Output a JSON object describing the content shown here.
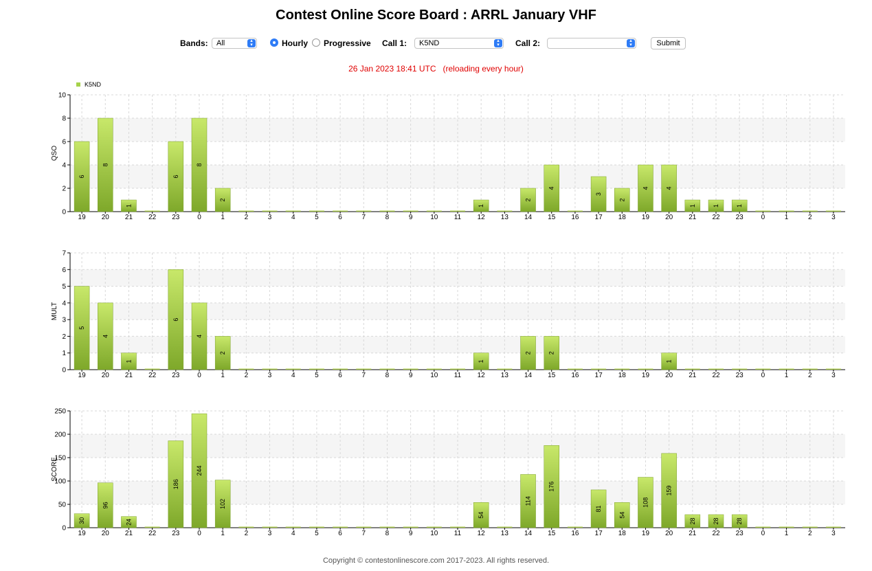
{
  "title": "Contest Online Score Board : ARRL January VHF",
  "controls": {
    "bands_label": "Bands:",
    "bands_value": "All",
    "hourly_label": "Hourly",
    "progressive_label": "Progressive",
    "mode_selected": "Hourly",
    "call1_label": "Call 1:",
    "call1_value": "K5ND",
    "call2_label": "Call 2:",
    "call2_value": "",
    "submit_label": "Submit"
  },
  "status": {
    "timestamp": "26 Jan 2023 18:41 UTC",
    "reload_note": "(reloading every hour)"
  },
  "colors": {
    "bar_top": "#c8e86a",
    "bar_bottom": "#7ea82a",
    "legend": "#a6d24a",
    "status": "#e00000"
  },
  "chart_data": [
    {
      "type": "bar",
      "legend": [
        "K5ND"
      ],
      "legend_position": "top-left",
      "ylabel": "QSO",
      "ylim": [
        0,
        10
      ],
      "yticks": [
        0,
        2,
        4,
        6,
        8,
        10
      ],
      "grid": true,
      "categories": [
        "19",
        "20",
        "21",
        "22",
        "23",
        "0",
        "1",
        "2",
        "3",
        "4",
        "5",
        "6",
        "7",
        "8",
        "9",
        "10",
        "11",
        "12",
        "13",
        "14",
        "15",
        "16",
        "17",
        "18",
        "19",
        "20",
        "21",
        "22",
        "23",
        "0",
        "1",
        "2",
        "3"
      ],
      "series": [
        {
          "name": "K5ND",
          "values": [
            6,
            8,
            1,
            0,
            6,
            8,
            2,
            0,
            0,
            0,
            0,
            0,
            0,
            0,
            0,
            0,
            0,
            1,
            0,
            2,
            4,
            0,
            3,
            2,
            4,
            4,
            1,
            1,
            1,
            0,
            0,
            0,
            0
          ]
        }
      ]
    },
    {
      "type": "bar",
      "legend": [],
      "ylabel": "MULT",
      "ylim": [
        0,
        7
      ],
      "yticks": [
        0,
        1,
        2,
        3,
        4,
        5,
        6,
        7
      ],
      "grid": true,
      "categories": [
        "19",
        "20",
        "21",
        "22",
        "23",
        "0",
        "1",
        "2",
        "3",
        "4",
        "5",
        "6",
        "7",
        "8",
        "9",
        "10",
        "11",
        "12",
        "13",
        "14",
        "15",
        "16",
        "17",
        "18",
        "19",
        "20",
        "21",
        "22",
        "23",
        "0",
        "1",
        "2",
        "3"
      ],
      "series": [
        {
          "name": "K5ND",
          "values": [
            5,
            4,
            1,
            0,
            6,
            4,
            2,
            0,
            0,
            0,
            0,
            0,
            0,
            0,
            0,
            0,
            0,
            1,
            0,
            2,
            2,
            0,
            0,
            0,
            0,
            1,
            0,
            0,
            0,
            0,
            0,
            0,
            0
          ]
        }
      ]
    },
    {
      "type": "bar",
      "legend": [],
      "ylabel": "SCORE",
      "ylim": [
        0,
        250
      ],
      "yticks": [
        0,
        50,
        100,
        150,
        200,
        250
      ],
      "grid": true,
      "categories": [
        "19",
        "20",
        "21",
        "22",
        "23",
        "0",
        "1",
        "2",
        "3",
        "4",
        "5",
        "6",
        "7",
        "8",
        "9",
        "10",
        "11",
        "12",
        "13",
        "14",
        "15",
        "16",
        "17",
        "18",
        "19",
        "20",
        "21",
        "22",
        "23",
        "0",
        "1",
        "2",
        "3"
      ],
      "series": [
        {
          "name": "K5ND",
          "values": [
            30,
            96,
            24,
            0,
            186,
            244,
            102,
            0,
            0,
            0,
            0,
            0,
            0,
            0,
            0,
            0,
            0,
            54,
            0,
            114,
            176,
            0,
            81,
            54,
            108,
            159,
            28,
            28,
            28,
            0,
            0,
            0,
            0
          ]
        }
      ]
    }
  ],
  "copyright": "Copyright © contestonlinescore.com 2017-2023. All rights reserved."
}
